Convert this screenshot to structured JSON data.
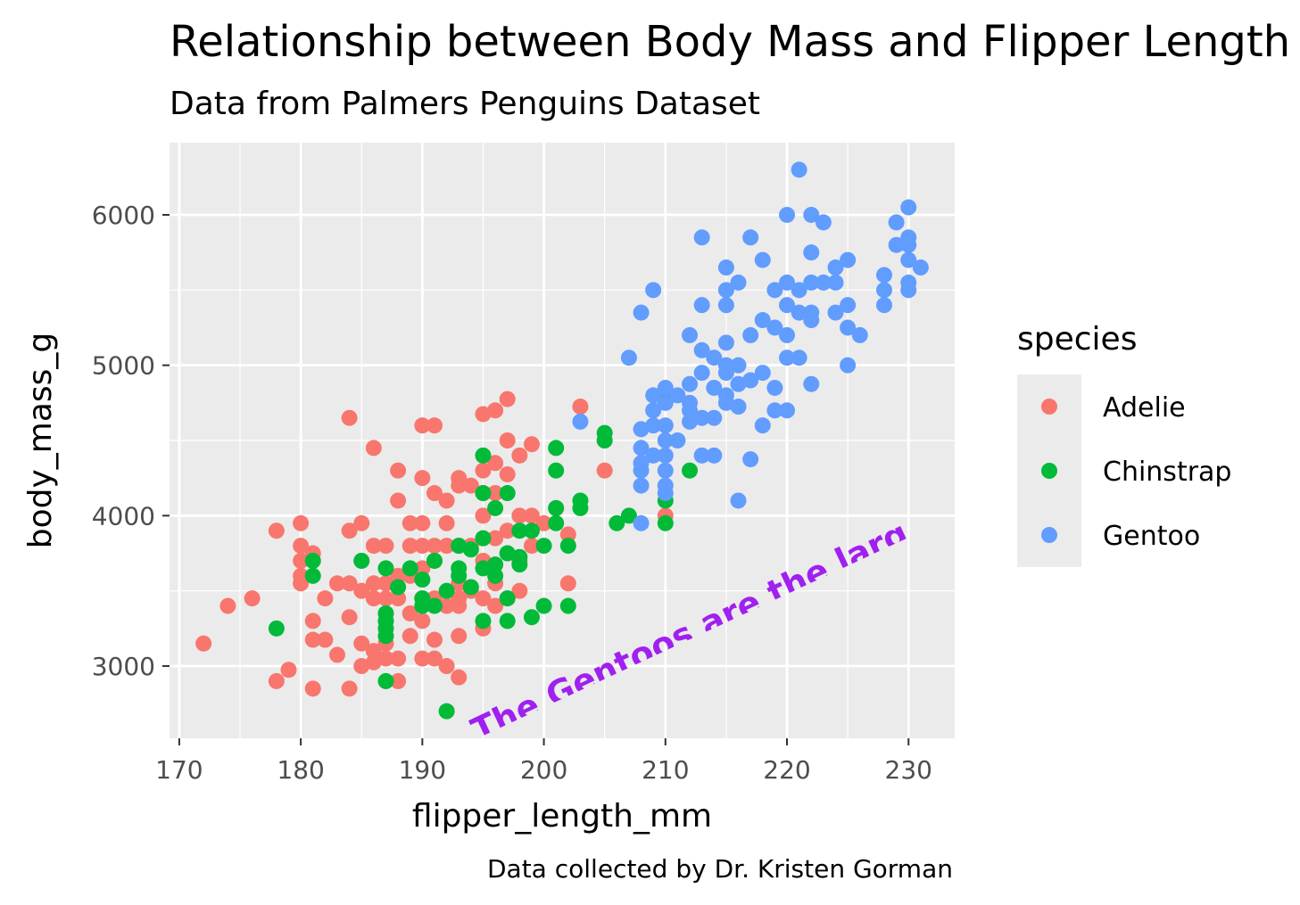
{
  "chart_data": {
    "type": "scatter",
    "title": "Relationship between Body Mass and Flipper Length",
    "subtitle": "Data from Palmers Penguins Dataset",
    "caption": "Data collected by Dr. Kristen Gorman",
    "xlabel": "flipper_length_mm",
    "ylabel": "body_mass_g",
    "xlim": [
      169.2,
      233.8
    ],
    "ylim": [
      2520,
      6480
    ],
    "x_ticks": [
      170,
      180,
      190,
      200,
      210,
      220,
      230
    ],
    "y_ticks": [
      3000,
      4000,
      5000,
      6000
    ],
    "grid": true,
    "legend": {
      "title": "species",
      "position": "right"
    },
    "annotation": {
      "text": "The Gentoos are the largest",
      "x": 195,
      "y": 2500,
      "color": "#A020F0",
      "angle": 25
    },
    "series": [
      {
        "name": "Adelie",
        "color": "#F8766D",
        "points": [
          [
            172,
            3150
          ],
          [
            174,
            3400
          ],
          [
            176,
            3450
          ],
          [
            178,
            3900
          ],
          [
            178,
            2900
          ],
          [
            179,
            2975
          ],
          [
            180,
            3950
          ],
          [
            180,
            3800
          ],
          [
            180,
            3700
          ],
          [
            180,
            3600
          ],
          [
            180,
            3550
          ],
          [
            181,
            3300
          ],
          [
            181,
            3175
          ],
          [
            181,
            2850
          ],
          [
            181,
            3750
          ],
          [
            182,
            3450
          ],
          [
            182,
            3175
          ],
          [
            183,
            3550
          ],
          [
            183,
            3075
          ],
          [
            184,
            3900
          ],
          [
            184,
            3550
          ],
          [
            184,
            3325
          ],
          [
            184,
            2850
          ],
          [
            184,
            4650
          ],
          [
            185,
            3950
          ],
          [
            185,
            3700
          ],
          [
            185,
            3500
          ],
          [
            185,
            3150
          ],
          [
            185,
            3000
          ],
          [
            186,
            3800
          ],
          [
            186,
            3550
          ],
          [
            186,
            3450
          ],
          [
            186,
            3100
          ],
          [
            186,
            4450
          ],
          [
            186,
            3025
          ],
          [
            187,
            3800
          ],
          [
            187,
            3550
          ],
          [
            187,
            3450
          ],
          [
            187,
            3300
          ],
          [
            187,
            3150
          ],
          [
            187,
            3050
          ],
          [
            188,
            4300
          ],
          [
            188,
            4100
          ],
          [
            188,
            3600
          ],
          [
            188,
            3450
          ],
          [
            188,
            3050
          ],
          [
            188,
            2900
          ],
          [
            189,
            3950
          ],
          [
            189,
            3800
          ],
          [
            189,
            3600
          ],
          [
            189,
            3350
          ],
          [
            189,
            3200
          ],
          [
            190,
            4600
          ],
          [
            190,
            4250
          ],
          [
            190,
            3950
          ],
          [
            190,
            3800
          ],
          [
            190,
            3650
          ],
          [
            190,
            3450
          ],
          [
            190,
            3300
          ],
          [
            190,
            3050
          ],
          [
            191,
            4600
          ],
          [
            191,
            4150
          ],
          [
            191,
            3800
          ],
          [
            191,
            3700
          ],
          [
            191,
            3450
          ],
          [
            191,
            3175
          ],
          [
            191,
            3050
          ],
          [
            192,
            4100
          ],
          [
            192,
            3950
          ],
          [
            192,
            3800
          ],
          [
            192,
            3400
          ],
          [
            192,
            3000
          ],
          [
            193,
            4250
          ],
          [
            193,
            4200
          ],
          [
            193,
            3800
          ],
          [
            193,
            3550
          ],
          [
            193,
            3450
          ],
          [
            193,
            3400
          ],
          [
            193,
            3200
          ],
          [
            193,
            2925
          ],
          [
            194,
            4200
          ],
          [
            194,
            3800
          ],
          [
            194,
            3500
          ],
          [
            195,
            4675
          ],
          [
            195,
            4300
          ],
          [
            195,
            4150
          ],
          [
            195,
            4000
          ],
          [
            195,
            3700
          ],
          [
            195,
            3450
          ],
          [
            195,
            3250
          ],
          [
            196,
            4700
          ],
          [
            196,
            4350
          ],
          [
            196,
            4150
          ],
          [
            196,
            3850
          ],
          [
            196,
            3550
          ],
          [
            196,
            3400
          ],
          [
            197,
            4775
          ],
          [
            197,
            4500
          ],
          [
            197,
            4275
          ],
          [
            197,
            3900
          ],
          [
            197,
            3750
          ],
          [
            197,
            3450
          ],
          [
            198,
            4400
          ],
          [
            198,
            4000
          ],
          [
            198,
            3700
          ],
          [
            198,
            3500
          ],
          [
            199,
            4475
          ],
          [
            199,
            4000
          ],
          [
            199,
            3800
          ],
          [
            200,
            3950
          ],
          [
            201,
            4050
          ],
          [
            202,
            3875
          ],
          [
            202,
            3550
          ],
          [
            203,
            4725
          ],
          [
            205,
            4300
          ],
          [
            210,
            4000
          ]
        ]
      },
      {
        "name": "Chinstrap",
        "color": "#00BA38",
        "points": [
          [
            178,
            3250
          ],
          [
            181,
            3700
          ],
          [
            181,
            3600
          ],
          [
            185,
            3700
          ],
          [
            187,
            3650
          ],
          [
            187,
            3350
          ],
          [
            187,
            3300
          ],
          [
            187,
            3250
          ],
          [
            187,
            3200
          ],
          [
            187,
            2900
          ],
          [
            188,
            3525
          ],
          [
            189,
            3650
          ],
          [
            190,
            3575
          ],
          [
            190,
            3450
          ],
          [
            190,
            3400
          ],
          [
            191,
            3700
          ],
          [
            191,
            3400
          ],
          [
            192,
            3500
          ],
          [
            192,
            2700
          ],
          [
            193,
            3800
          ],
          [
            193,
            3650
          ],
          [
            193,
            3600
          ],
          [
            194,
            3525
          ],
          [
            194,
            3775
          ],
          [
            195,
            4400
          ],
          [
            195,
            4150
          ],
          [
            195,
            3850
          ],
          [
            195,
            3650
          ],
          [
            195,
            3300
          ],
          [
            196,
            4050
          ],
          [
            196,
            3675
          ],
          [
            196,
            3600
          ],
          [
            197,
            4150
          ],
          [
            197,
            3750
          ],
          [
            197,
            3450
          ],
          [
            197,
            3300
          ],
          [
            198,
            3900
          ],
          [
            198,
            3725
          ],
          [
            198,
            3675
          ],
          [
            199,
            3900
          ],
          [
            199,
            3325
          ],
          [
            200,
            3800
          ],
          [
            200,
            3400
          ],
          [
            201,
            4450
          ],
          [
            201,
            4300
          ],
          [
            201,
            4050
          ],
          [
            201,
            3950
          ],
          [
            202,
            3800
          ],
          [
            202,
            3400
          ],
          [
            203,
            4100
          ],
          [
            203,
            4050
          ],
          [
            205,
            4550
          ],
          [
            205,
            4500
          ],
          [
            206,
            3950
          ],
          [
            207,
            4000
          ],
          [
            210,
            4800
          ],
          [
            210,
            4100
          ],
          [
            210,
            3950
          ],
          [
            212,
            4300
          ]
        ]
      },
      {
        "name": "Gentoo",
        "color": "#619CFF",
        "points": [
          [
            203,
            4625
          ],
          [
            207,
            5050
          ],
          [
            208,
            5350
          ],
          [
            208,
            4575
          ],
          [
            208,
            4450
          ],
          [
            208,
            4350
          ],
          [
            208,
            4300
          ],
          [
            208,
            4200
          ],
          [
            208,
            3950
          ],
          [
            209,
            5500
          ],
          [
            209,
            4800
          ],
          [
            209,
            4700
          ],
          [
            209,
            4600
          ],
          [
            209,
            4400
          ],
          [
            210,
            4850
          ],
          [
            210,
            4750
          ],
          [
            210,
            4600
          ],
          [
            210,
            4500
          ],
          [
            210,
            4400
          ],
          [
            210,
            4300
          ],
          [
            210,
            4200
          ],
          [
            210,
            4150
          ],
          [
            211,
            4800
          ],
          [
            211,
            4500
          ],
          [
            212,
            5200
          ],
          [
            212,
            4875
          ],
          [
            212,
            4750
          ],
          [
            212,
            4700
          ],
          [
            212,
            4625
          ],
          [
            213,
            5850
          ],
          [
            213,
            5400
          ],
          [
            213,
            5100
          ],
          [
            213,
            4950
          ],
          [
            213,
            4650
          ],
          [
            213,
            4400
          ],
          [
            214,
            5050
          ],
          [
            214,
            4850
          ],
          [
            214,
            4650
          ],
          [
            214,
            4400
          ],
          [
            215,
            5650
          ],
          [
            215,
            5500
          ],
          [
            215,
            5400
          ],
          [
            215,
            5150
          ],
          [
            215,
            5000
          ],
          [
            215,
            4950
          ],
          [
            215,
            4800
          ],
          [
            215,
            4750
          ],
          [
            216,
            5550
          ],
          [
            216,
            5000
          ],
          [
            216,
            4875
          ],
          [
            216,
            4725
          ],
          [
            216,
            4100
          ],
          [
            217,
            5850
          ],
          [
            217,
            5200
          ],
          [
            217,
            4900
          ],
          [
            217,
            4375
          ],
          [
            218,
            5700
          ],
          [
            218,
            5300
          ],
          [
            218,
            4950
          ],
          [
            218,
            4600
          ],
          [
            219,
            5500
          ],
          [
            219,
            5250
          ],
          [
            219,
            4850
          ],
          [
            219,
            4700
          ],
          [
            220,
            6000
          ],
          [
            220,
            5550
          ],
          [
            220,
            5400
          ],
          [
            220,
            5200
          ],
          [
            220,
            5050
          ],
          [
            220,
            4700
          ],
          [
            221,
            6300
          ],
          [
            221,
            5500
          ],
          [
            221,
            5350
          ],
          [
            221,
            5050
          ],
          [
            222,
            6000
          ],
          [
            222,
            5750
          ],
          [
            222,
            5550
          ],
          [
            222,
            5350
          ],
          [
            222,
            5300
          ],
          [
            222,
            4875
          ],
          [
            223,
            5950
          ],
          [
            223,
            5550
          ],
          [
            224,
            5650
          ],
          [
            224,
            5550
          ],
          [
            224,
            5350
          ],
          [
            225,
            5700
          ],
          [
            225,
            5400
          ],
          [
            225,
            5250
          ],
          [
            225,
            5000
          ],
          [
            226,
            5200
          ],
          [
            228,
            5600
          ],
          [
            228,
            5500
          ],
          [
            228,
            5400
          ],
          [
            229,
            5950
          ],
          [
            229,
            5800
          ],
          [
            230,
            6050
          ],
          [
            230,
            5850
          ],
          [
            230,
            5800
          ],
          [
            230,
            5700
          ],
          [
            230,
            5550
          ],
          [
            230,
            5500
          ],
          [
            231,
            5650
          ]
        ]
      }
    ]
  }
}
